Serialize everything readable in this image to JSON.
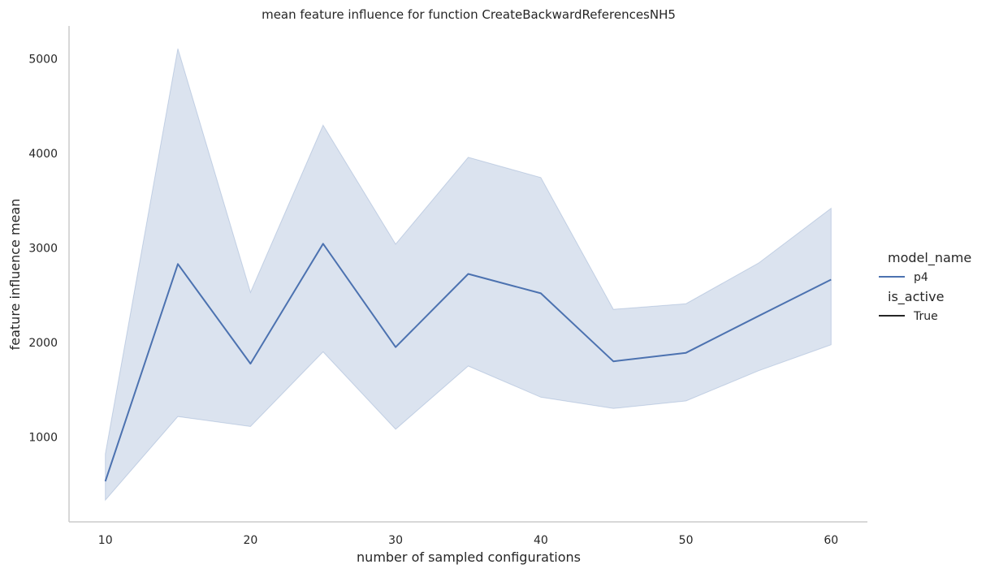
{
  "chart_data": {
    "type": "line",
    "title": "mean feature influence for function CreateBackwardReferencesNH5",
    "xlabel": "number of sampled configurations",
    "ylabel": "feature influence mean",
    "x": [
      10,
      15,
      20,
      25,
      30,
      35,
      40,
      45,
      50,
      55,
      60
    ],
    "xlim": [
      7.5,
      62.5
    ],
    "ylim": [
      100,
      5350
    ],
    "xticks": [
      10,
      20,
      30,
      40,
      50,
      60
    ],
    "yticks": [
      1000,
      2000,
      3000,
      4000,
      5000
    ],
    "series": [
      {
        "name": "p4",
        "color": "#4c72b0",
        "values": [
          530,
          2830,
          1775,
          3045,
          1950,
          2725,
          2520,
          1800,
          1890,
          2280,
          2665
        ],
        "ci_lower": [
          330,
          1215,
          1110,
          1900,
          1080,
          1750,
          1420,
          1300,
          1380,
          1700,
          1975
        ],
        "ci_upper": [
          820,
          5110,
          2530,
          4300,
          3040,
          3960,
          3745,
          2350,
          2410,
          2840,
          3420
        ]
      }
    ],
    "grid": false,
    "legend": {
      "placement": "right",
      "title1": "model_name",
      "entry1": "p4",
      "title2": "is_active",
      "entry2": "True"
    }
  }
}
